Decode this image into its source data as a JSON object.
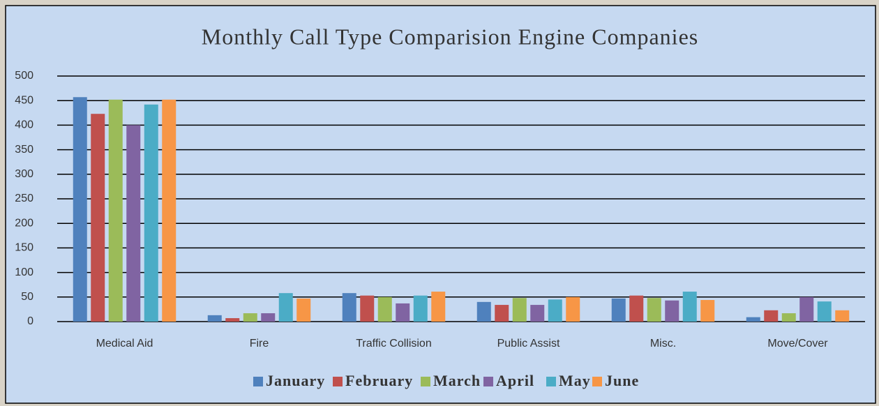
{
  "chart_data": {
    "type": "bar",
    "title": "Monthly Call Type Comparision Engine Companies",
    "categories": [
      "Medical Aid",
      "Fire",
      "Traffic Collision",
      "Public Assist",
      "Misc.",
      "Move/Cover"
    ],
    "series": [
      {
        "name": "January",
        "color": "#4f81bd",
        "values": [
          457,
          13,
          58,
          40,
          47,
          9
        ]
      },
      {
        "name": "February",
        "color": "#c0504d",
        "values": [
          423,
          7,
          53,
          34,
          53,
          23
        ]
      },
      {
        "name": "March",
        "color": "#9bbb59",
        "values": [
          452,
          17,
          50,
          48,
          48,
          17
        ]
      },
      {
        "name": "April",
        "color": "#8064a2",
        "values": [
          400,
          17,
          37,
          34,
          43,
          50
        ]
      },
      {
        "name": "May",
        "color": "#4bacc6",
        "values": [
          442,
          58,
          53,
          45,
          61,
          41
        ]
      },
      {
        "name": "June",
        "color": "#f79646",
        "values": [
          452,
          47,
          61,
          50,
          44,
          23
        ]
      }
    ],
    "ylim": [
      0,
      500
    ],
    "yticks": [
      0,
      50,
      100,
      150,
      200,
      250,
      300,
      350,
      400,
      450,
      500
    ],
    "grid": true,
    "legend": "bottom"
  }
}
